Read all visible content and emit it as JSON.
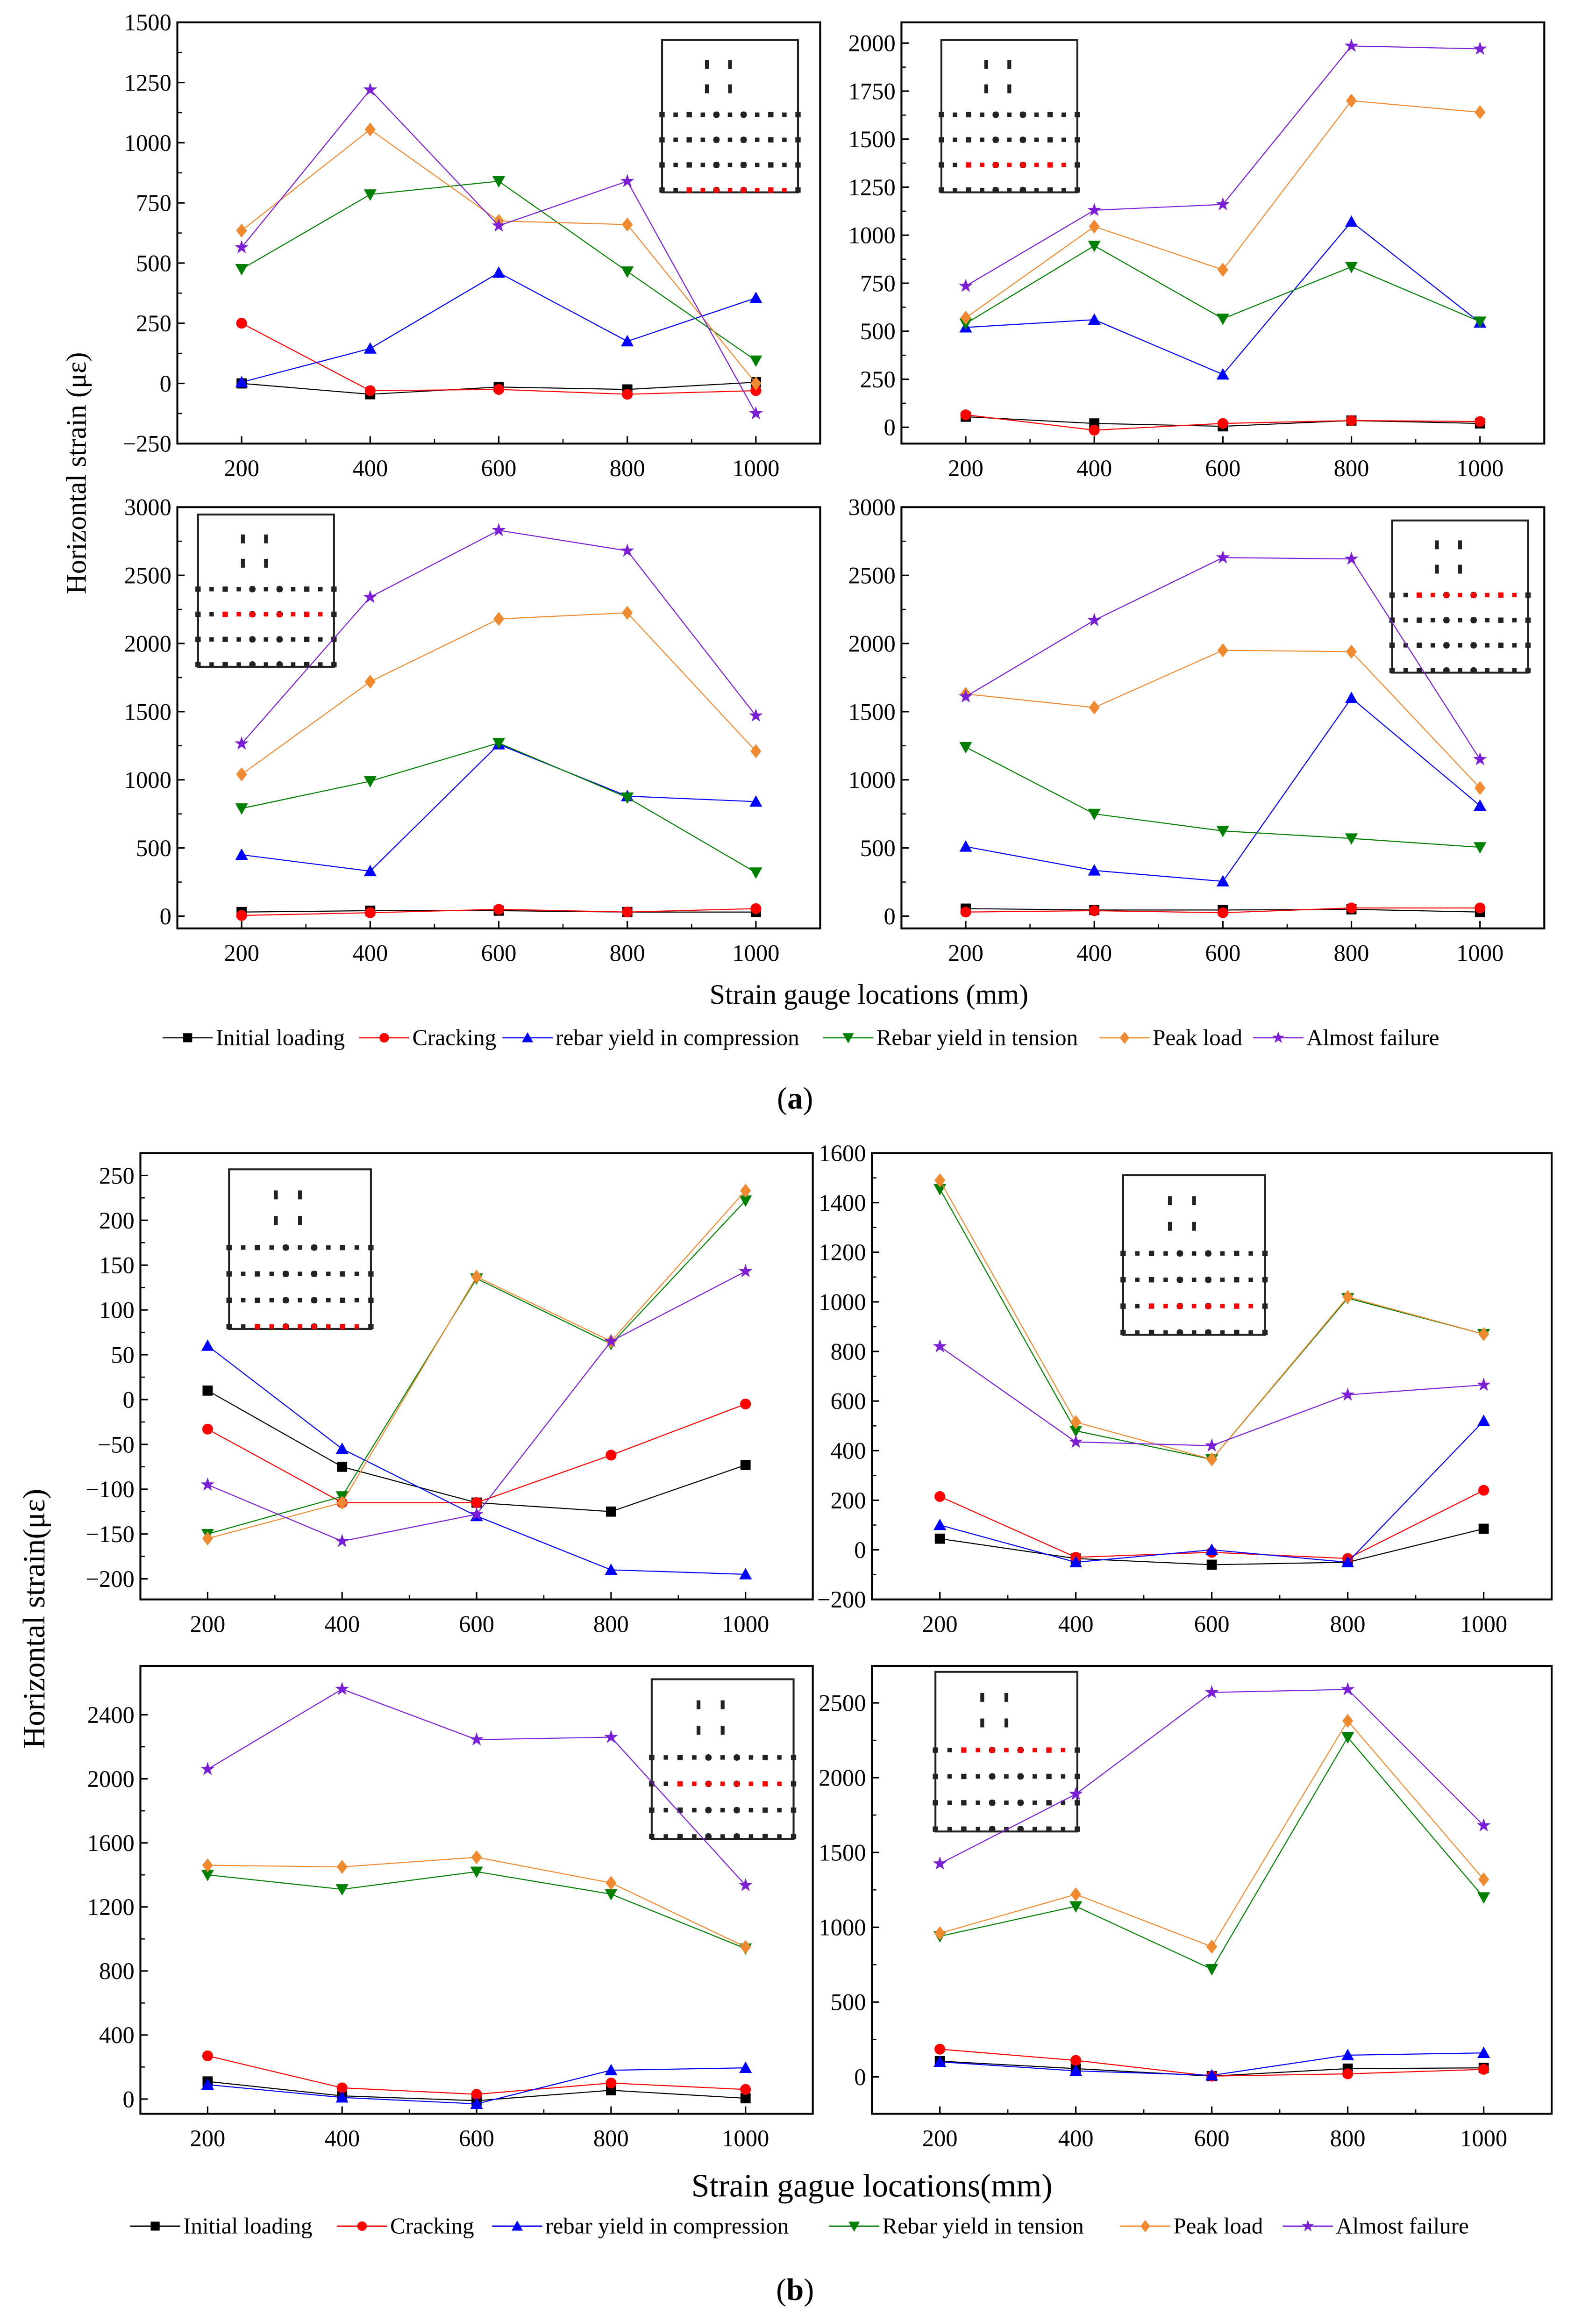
{
  "figure": {
    "a": {
      "label_open": "(",
      "label_letter": "a",
      "label_close": ")",
      "ylabel": "Horizontal strain (με)",
      "xlabel": "Strain gauge locations (mm)",
      "legend": [
        "Initial loading",
        "Cracking",
        "rebar yield in compression",
        "Rebar yield in tension",
        "Peak load",
        "Almost failure"
      ]
    },
    "b": {
      "label_open": "(",
      "label_letter": "b",
      "label_close": ")",
      "ylabel": "Horizontal strain(με)",
      "xlabel": "Strain gague locations(mm)",
      "legend": [
        "Initial loading",
        "Cracking",
        "rebar yield in compression",
        "Rebar yield in tension",
        "Peak load",
        "Almost failure"
      ]
    }
  },
  "series_style": [
    {
      "name": "Initial loading",
      "color": "#000000",
      "marker": "square"
    },
    {
      "name": "Cracking",
      "color": "#ff0000",
      "marker": "circle"
    },
    {
      "name": "rebar yield in compression",
      "color": "#0000ff",
      "marker": "triangle-up"
    },
    {
      "name": "Rebar yield in tension",
      "color": "#008000",
      "marker": "triangle-down"
    },
    {
      "name": "Peak load",
      "color": "#f08a30",
      "marker": "diamond"
    },
    {
      "name": "Almost failure",
      "color": "#7a1fd6",
      "marker": "star"
    }
  ],
  "chart_data": [
    {
      "id": "a1",
      "type": "line",
      "x": [
        200,
        400,
        600,
        800,
        1000
      ],
      "xlim": [
        100,
        1100
      ],
      "ylim": [
        -250,
        1500
      ],
      "yticks": [
        -250,
        0,
        250,
        500,
        750,
        1000,
        1250,
        1500
      ],
      "series": [
        {
          "name": "Initial loading",
          "values": [
            0,
            -45,
            -15,
            -25,
            5
          ]
        },
        {
          "name": "Cracking",
          "values": [
            250,
            -30,
            -25,
            -45,
            -30
          ]
        },
        {
          "name": "rebar yield in compression",
          "values": [
            5,
            145,
            460,
            175,
            355
          ]
        },
        {
          "name": "Rebar yield in tension",
          "values": [
            475,
            785,
            840,
            465,
            95
          ]
        },
        {
          "name": "Peak load",
          "values": [
            635,
            1055,
            675,
            660,
            0
          ]
        },
        {
          "name": "Almost failure",
          "values": [
            565,
            1220,
            655,
            840,
            -125
          ]
        }
      ]
    },
    {
      "id": "a2",
      "type": "line",
      "x": [
        200,
        400,
        600,
        800,
        1000
      ],
      "xlim": [
        100,
        1100
      ],
      "ylim": [
        -85,
        2108
      ],
      "yticks": [
        0,
        250,
        500,
        750,
        1000,
        1250,
        1500,
        1750,
        2000
      ],
      "series": [
        {
          "name": "Initial loading",
          "values": [
            55,
            20,
            5,
            35,
            20
          ]
        },
        {
          "name": "Cracking",
          "values": [
            65,
            -15,
            20,
            35,
            30
          ]
        },
        {
          "name": "rebar yield in compression",
          "values": [
            520,
            560,
            275,
            1070,
            545
          ]
        },
        {
          "name": "Rebar yield in tension",
          "values": [
            540,
            945,
            565,
            835,
            550
          ]
        },
        {
          "name": "Peak load",
          "values": [
            570,
            1045,
            820,
            1700,
            1640
          ]
        },
        {
          "name": "Almost failure",
          "values": [
            735,
            1130,
            1160,
            1985,
            1970
          ]
        }
      ]
    },
    {
      "id": "a3",
      "type": "line",
      "x": [
        200,
        400,
        600,
        800,
        1000
      ],
      "xlim": [
        100,
        1100
      ],
      "ylim": [
        -90,
        3000
      ],
      "yticks": [
        0,
        500,
        1000,
        1500,
        2000,
        2500,
        3000
      ],
      "series": [
        {
          "name": "Initial loading",
          "values": [
            30,
            40,
            40,
            30,
            30
          ]
        },
        {
          "name": "Cracking",
          "values": [
            5,
            25,
            50,
            30,
            55
          ]
        },
        {
          "name": "rebar yield in compression",
          "values": [
            450,
            330,
            1260,
            880,
            840
          ]
        },
        {
          "name": "Rebar yield in tension",
          "values": [
            790,
            990,
            1270,
            870,
            320
          ]
        },
        {
          "name": "Peak load",
          "values": [
            1040,
            1720,
            2180,
            2225,
            1210
          ]
        },
        {
          "name": "Almost failure",
          "values": [
            1265,
            2340,
            2830,
            2680,
            1470
          ]
        }
      ]
    },
    {
      "id": "a4",
      "type": "line",
      "x": [
        200,
        400,
        600,
        800,
        1000
      ],
      "xlim": [
        100,
        1100
      ],
      "ylim": [
        -90,
        3000
      ],
      "yticks": [
        0,
        500,
        1000,
        1500,
        2000,
        2500,
        3000
      ],
      "series": [
        {
          "name": "Initial loading",
          "values": [
            55,
            45,
            45,
            50,
            30
          ]
        },
        {
          "name": "Cracking",
          "values": [
            30,
            40,
            25,
            60,
            60
          ]
        },
        {
          "name": "rebar yield in compression",
          "values": [
            510,
            335,
            255,
            1600,
            810
          ]
        },
        {
          "name": "Rebar yield in tension",
          "values": [
            1240,
            750,
            625,
            570,
            505
          ]
        },
        {
          "name": "Peak load",
          "values": [
            1630,
            1530,
            1950,
            1940,
            940
          ]
        },
        {
          "name": "Almost failure",
          "values": [
            1610,
            2170,
            2630,
            2620,
            1150
          ]
        }
      ]
    },
    {
      "id": "b1",
      "type": "line",
      "x": [
        200,
        400,
        600,
        800,
        1000
      ],
      "xlim": [
        100,
        1100
      ],
      "ylim": [
        -223,
        275
      ],
      "yticks": [
        -200,
        -150,
        -100,
        -50,
        0,
        50,
        100,
        150,
        200,
        250
      ],
      "series": [
        {
          "name": "Initial loading",
          "values": [
            10,
            -75,
            -115,
            -125,
            -73
          ]
        },
        {
          "name": "Cracking",
          "values": [
            -33,
            -115,
            -115,
            -62,
            -5
          ]
        },
        {
          "name": "rebar yield in compression",
          "values": [
            60,
            -55,
            -130,
            -190,
            -195
          ]
        },
        {
          "name": "Rebar yield in tension",
          "values": [
            -150,
            -108,
            135,
            62,
            222
          ]
        },
        {
          "name": "Peak load",
          "values": [
            -155,
            -115,
            137,
            65,
            233
          ]
        },
        {
          "name": "Almost failure",
          "values": [
            -95,
            -158,
            -128,
            65,
            143
          ]
        }
      ]
    },
    {
      "id": "b2",
      "type": "line",
      "x": [
        200,
        400,
        600,
        800,
        1000
      ],
      "xlim": [
        100,
        1100
      ],
      "ylim": [
        -200,
        1600
      ],
      "yticks": [
        -200,
        0,
        200,
        400,
        600,
        800,
        1000,
        1200,
        1400,
        1600
      ],
      "series": [
        {
          "name": "Initial loading",
          "values": [
            45,
            -35,
            -60,
            -50,
            85
          ]
        },
        {
          "name": "Cracking",
          "values": [
            215,
            -30,
            -10,
            -35,
            240
          ]
        },
        {
          "name": "rebar yield in compression",
          "values": [
            100,
            -50,
            0,
            -50,
            520
          ]
        },
        {
          "name": "Rebar yield in tension",
          "values": [
            1455,
            480,
            365,
            1015,
            870
          ]
        },
        {
          "name": "Peak load",
          "values": [
            1490,
            515,
            365,
            1020,
            870
          ]
        },
        {
          "name": "Almost failure",
          "values": [
            820,
            435,
            420,
            625,
            665
          ]
        }
      ]
    },
    {
      "id": "b3",
      "type": "line",
      "x": [
        200,
        400,
        600,
        800,
        1000
      ],
      "xlim": [
        100,
        1100
      ],
      "ylim": [
        -92,
        2705
      ],
      "yticks": [
        0,
        400,
        800,
        1200,
        1600,
        2000,
        2400
      ],
      "series": [
        {
          "name": "Initial loading",
          "values": [
            110,
            20,
            -10,
            55,
            5
          ]
        },
        {
          "name": "Cracking",
          "values": [
            270,
            70,
            30,
            100,
            60
          ]
        },
        {
          "name": "rebar yield in compression",
          "values": [
            90,
            10,
            -30,
            180,
            195
          ]
        },
        {
          "name": "Rebar yield in tension",
          "values": [
            1400,
            1310,
            1420,
            1280,
            940
          ]
        },
        {
          "name": "Peak load",
          "values": [
            1460,
            1450,
            1510,
            1350,
            950
          ]
        },
        {
          "name": "Almost failure",
          "values": [
            2060,
            2560,
            2245,
            2260,
            1335
          ]
        }
      ]
    },
    {
      "id": "b4",
      "type": "line",
      "x": [
        200,
        400,
        600,
        800,
        1000
      ],
      "xlim": [
        100,
        1100
      ],
      "ylim": [
        -247,
        2747
      ],
      "yticks": [
        0,
        500,
        1000,
        1500,
        2000,
        2500
      ],
      "series": [
        {
          "name": "Initial loading",
          "values": [
            105,
            55,
            5,
            55,
            60
          ]
        },
        {
          "name": "Cracking",
          "values": [
            185,
            110,
            5,
            20,
            50
          ]
        },
        {
          "name": "rebar yield in compression",
          "values": [
            100,
            40,
            10,
            145,
            160
          ]
        },
        {
          "name": "Rebar yield in tension",
          "values": [
            940,
            1140,
            720,
            2270,
            1200
          ]
        },
        {
          "name": "Peak load",
          "values": [
            960,
            1220,
            870,
            2380,
            1320
          ]
        },
        {
          "name": "Almost failure",
          "values": [
            1425,
            1890,
            2570,
            2590,
            1680
          ]
        }
      ]
    }
  ]
}
